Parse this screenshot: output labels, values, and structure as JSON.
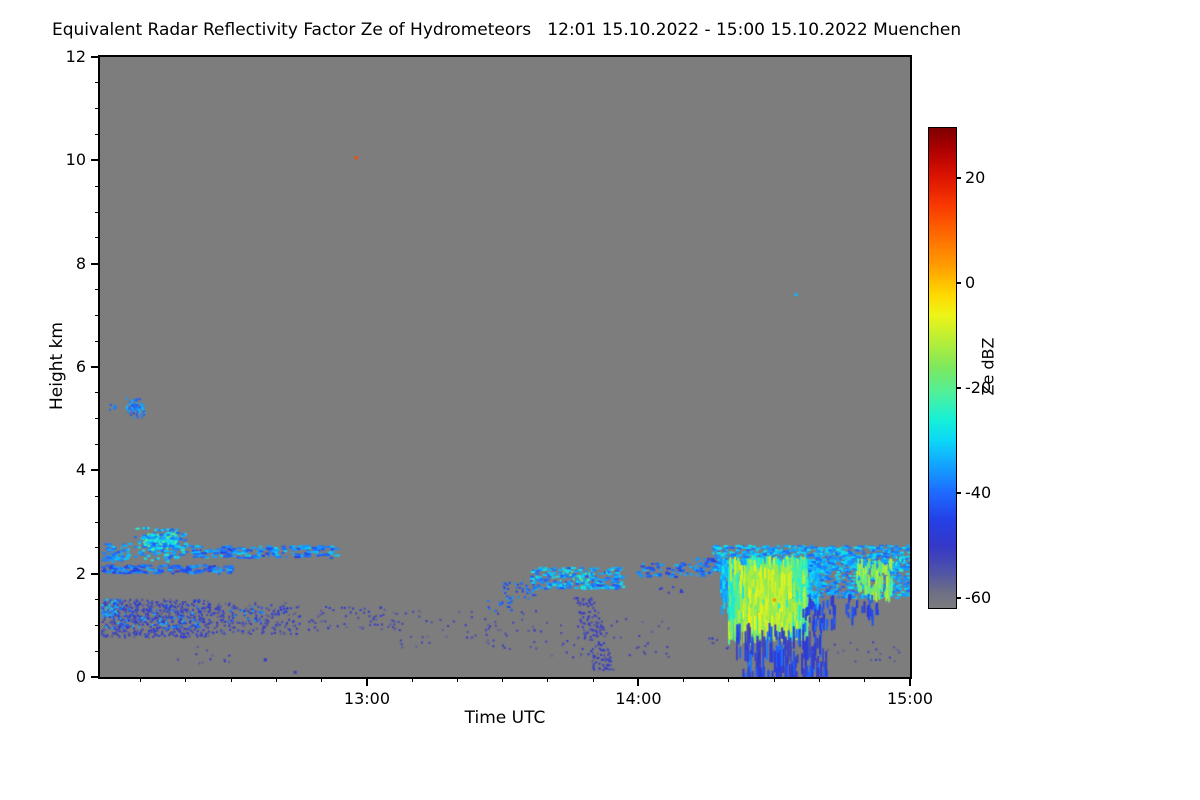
{
  "chart_data": {
    "type": "heatmap",
    "title": "Equivalent Radar Reflectivity Factor Ze of Hydrometeors   12:01 15.10.2022 - 15:00 15.10.2022 Muenchen",
    "xlabel": "Time UTC",
    "ylabel": "Height km",
    "station": "Muenchen",
    "time_range_label": "12:01 15.10.2022 - 15:00 15.10.2022",
    "x_range_hours": [
      12.0167,
      15.0
    ],
    "ylim": [
      0,
      12
    ],
    "plot_background": "#7d7d7d",
    "axes": {
      "x": {
        "majors": [
          {
            "t": 13,
            "label": "13:00"
          },
          {
            "t": 14,
            "label": "14:00"
          },
          {
            "t": 15,
            "label": "15:00"
          }
        ],
        "minor_step_minutes": 10
      },
      "y": {
        "majors": [
          0,
          2,
          4,
          6,
          8,
          10,
          12
        ],
        "minor_step": 0.5
      }
    },
    "colorbar": {
      "label": "Ze dBZ",
      "min": -62,
      "max": 29.5,
      "ticks": [
        20,
        0,
        -20,
        -40,
        -60
      ],
      "stops": [
        [
          -62,
          "#7d7d7d"
        ],
        [
          -59,
          "#6e7086"
        ],
        [
          -55,
          "#5053a8"
        ],
        [
          -50,
          "#3538c8"
        ],
        [
          -45,
          "#2441e8"
        ],
        [
          -40,
          "#1e6aff"
        ],
        [
          -35,
          "#14a0ff"
        ],
        [
          -30,
          "#0cd8f8"
        ],
        [
          -26,
          "#16f0d8"
        ],
        [
          -21,
          "#4ff09c"
        ],
        [
          -16,
          "#7ee85e"
        ],
        [
          -11,
          "#b8ee38"
        ],
        [
          -6,
          "#eef417"
        ],
        [
          -2,
          "#ffd800"
        ],
        [
          3,
          "#ffa000"
        ],
        [
          9,
          "#ff6c00"
        ],
        [
          15,
          "#f83800"
        ],
        [
          21,
          "#d81000"
        ],
        [
          26,
          "#a80000"
        ],
        [
          29.5,
          "#7e0000"
        ]
      ]
    },
    "features": [
      {
        "type": "speckle",
        "t": [
          12.02,
          12.42
        ],
        "h": [
          0.78,
          1.52
        ],
        "dbz": [
          -58,
          -44
        ],
        "density": 0.55
      },
      {
        "type": "speckle",
        "t": [
          12.03,
          12.38
        ],
        "h": [
          0.95,
          1.42
        ],
        "dbz": [
          -44,
          -31
        ],
        "density": 0.14
      },
      {
        "type": "speckle",
        "t": [
          12.02,
          12.09
        ],
        "h": [
          1.18,
          1.52
        ],
        "dbz": [
          -40,
          -30
        ],
        "density": 0.5
      },
      {
        "type": "speckle",
        "t": [
          12.42,
          12.75
        ],
        "h": [
          0.85,
          1.45
        ],
        "dbz": [
          -58,
          -45
        ],
        "density": 0.28
      },
      {
        "type": "speckle",
        "t": [
          12.48,
          12.62
        ],
        "h": [
          1.05,
          1.38
        ],
        "dbz": [
          -44,
          -34
        ],
        "density": 0.12
      },
      {
        "type": "speckle",
        "t": [
          12.75,
          13.12
        ],
        "h": [
          0.92,
          1.38
        ],
        "dbz": [
          -58,
          -48
        ],
        "density": 0.11
      },
      {
        "type": "speckle",
        "t": [
          13.1,
          13.62
        ],
        "h": [
          0.55,
          1.3
        ],
        "dbz": [
          -58,
          -50
        ],
        "density": 0.05
      },
      {
        "type": "speckle",
        "t": [
          13.62,
          14.12
        ],
        "h": [
          0.35,
          1.15
        ],
        "dbz": [
          -58,
          -50
        ],
        "density": 0.035
      },
      {
        "type": "speckle",
        "t": [
          12.3,
          12.5
        ],
        "h": [
          0.25,
          0.6
        ],
        "dbz": [
          -57,
          -50
        ],
        "density": 0.05
      },
      {
        "type": "dot",
        "t": [
          12.62,
          12.63
        ],
        "h": [
          0.32,
          0.36
        ],
        "dbz": [
          -50,
          -50
        ],
        "size": 3
      },
      {
        "type": "dot",
        "t": [
          12.73,
          12.74
        ],
        "h": [
          0.08,
          0.12
        ],
        "dbz": [
          -52,
          -52
        ],
        "size": 3
      },
      {
        "type": "speckle",
        "t": [
          12.02,
          12.5
        ],
        "h": [
          2.02,
          2.18
        ],
        "dbz": [
          -48,
          -33
        ],
        "density": 0.6,
        "stretch": 4
      },
      {
        "type": "speckle",
        "t": [
          12.02,
          12.12
        ],
        "h": [
          2.25,
          2.62
        ],
        "dbz": [
          -42,
          -30
        ],
        "density": 0.45,
        "stretch": 3
      },
      {
        "type": "speckle",
        "t": [
          12.13,
          12.35
        ],
        "h": [
          2.25,
          2.95
        ],
        "dbz": [
          -42,
          -24
        ],
        "density": 0.5,
        "gauss": true,
        "stretch": 3
      },
      {
        "type": "speckle",
        "t": [
          12.17,
          12.3
        ],
        "h": [
          2.45,
          2.8
        ],
        "dbz": [
          -24,
          -16
        ],
        "density": 0.15,
        "gauss": true
      },
      {
        "type": "speckle",
        "t": [
          12.35,
          12.88
        ],
        "h": [
          2.32,
          2.56
        ],
        "dbz": [
          -46,
          -30
        ],
        "density": 0.4,
        "stretch": 5
      },
      {
        "type": "speckle",
        "t": [
          12.105,
          12.185
        ],
        "h": [
          5.0,
          5.46
        ],
        "dbz": [
          -44,
          -32
        ],
        "density": 0.55,
        "gauss": true
      },
      {
        "type": "speckle",
        "t": [
          12.05,
          12.08
        ],
        "h": [
          5.18,
          5.33
        ],
        "dbz": [
          -42,
          -36
        ],
        "density": 0.5
      },
      {
        "type": "dot",
        "t": [
          12.955,
          12.965
        ],
        "h": [
          10.0,
          10.08
        ],
        "dbz": [
          13,
          13
        ],
        "size": 3
      },
      {
        "type": "dot",
        "t": [
          14.575,
          14.585
        ],
        "h": [
          7.36,
          7.43
        ],
        "dbz": [
          -33,
          -33
        ],
        "size": 3
      },
      {
        "type": "speckle",
        "t": [
          13.44,
          13.53
        ],
        "h": [
          1.28,
          1.5
        ],
        "dbz": [
          -47,
          -37
        ],
        "density": 0.25
      },
      {
        "type": "speckle",
        "t": [
          13.5,
          13.62
        ],
        "h": [
          1.52,
          1.85
        ],
        "dbz": [
          -46,
          -35
        ],
        "density": 0.3
      },
      {
        "type": "speckle",
        "t": [
          13.6,
          13.94
        ],
        "h": [
          1.72,
          2.14
        ],
        "dbz": [
          -44,
          -26
        ],
        "density": 0.55,
        "stretch": 3
      },
      {
        "type": "speckle",
        "t": [
          13.7,
          13.88
        ],
        "h": [
          1.8,
          2.06
        ],
        "dbz": [
          -26,
          -18
        ],
        "density": 0.1
      },
      {
        "type": "speckle",
        "t": [
          13.76,
          13.84
        ],
        "h": [
          0.15,
          1.55
        ],
        "dbz": [
          -57,
          -47
        ],
        "density": 0.4,
        "slant": 18
      },
      {
        "type": "speckle",
        "t": [
          13.98,
          14.24
        ],
        "h": [
          1.95,
          2.22
        ],
        "dbz": [
          -46,
          -32
        ],
        "density": 0.3,
        "stretch": 3
      },
      {
        "type": "speckle",
        "t": [
          14.05,
          14.16
        ],
        "h": [
          1.6,
          1.78
        ],
        "dbz": [
          -50,
          -42
        ],
        "density": 0.1
      },
      {
        "type": "speckle",
        "t": [
          14.25,
          14.36
        ],
        "h": [
          0.5,
          0.8
        ],
        "dbz": [
          -56,
          -48
        ],
        "density": 0.08
      },
      {
        "type": "speckle",
        "t": [
          14.2,
          14.33
        ],
        "h": [
          2.0,
          2.32
        ],
        "dbz": [
          -46,
          -33
        ],
        "density": 0.35,
        "stretch": 3
      },
      {
        "type": "speckle",
        "t": [
          14.27,
          15.0
        ],
        "h": [
          2.08,
          2.56
        ],
        "dbz": [
          -42,
          -27
        ],
        "density": 0.65,
        "stretch": 3
      },
      {
        "type": "speckle",
        "t": [
          14.3,
          14.66
        ],
        "h": [
          1.35,
          2.3
        ],
        "dbz": [
          -38,
          -26
        ],
        "density": 0.5,
        "vert": [
          4,
          10
        ]
      },
      {
        "type": "speckle",
        "t": [
          14.33,
          14.62
        ],
        "h": [
          0.95,
          2.35
        ],
        "dbz": [
          -28,
          -8
        ],
        "density": 0.55,
        "vert": [
          8,
          22
        ]
      },
      {
        "type": "speckle",
        "t": [
          14.38,
          14.56
        ],
        "h": [
          1.05,
          2.2
        ],
        "dbz": [
          -16,
          -5
        ],
        "density": 0.35,
        "vert": [
          8,
          20
        ]
      },
      {
        "type": "dot",
        "t": [
          14.495,
          14.505
        ],
        "h": [
          1.45,
          1.52
        ],
        "dbz": [
          6,
          6
        ],
        "size": 3
      },
      {
        "type": "speckle",
        "t": [
          14.35,
          14.68
        ],
        "h": [
          0.08,
          1.05
        ],
        "dbz": [
          -54,
          -38
        ],
        "density": 0.13,
        "vert": [
          8,
          26
        ],
        "slant": 6
      },
      {
        "type": "speckle",
        "t": [
          14.6,
          14.72
        ],
        "h": [
          1.05,
          1.6
        ],
        "dbz": [
          -50,
          -40
        ],
        "density": 0.2,
        "vert": [
          5,
          12
        ]
      },
      {
        "type": "speckle",
        "t": [
          14.62,
          15.0
        ],
        "h": [
          1.55,
          2.3
        ],
        "dbz": [
          -42,
          -28
        ],
        "density": 0.5,
        "stretch": 3
      },
      {
        "type": "speckle",
        "t": [
          14.8,
          14.93
        ],
        "h": [
          1.65,
          2.3
        ],
        "dbz": [
          -22,
          -10
        ],
        "density": 0.3,
        "vert": [
          6,
          14
        ]
      },
      {
        "type": "speckle",
        "t": [
          14.93,
          14.98
        ],
        "h": [
          2.05,
          2.35
        ],
        "dbz": [
          -26,
          -16
        ],
        "density": 0.2
      },
      {
        "type": "speckle",
        "t": [
          14.76,
          14.88
        ],
        "h": [
          1.2,
          1.62
        ],
        "dbz": [
          -50,
          -40
        ],
        "density": 0.15,
        "vert": [
          5,
          12
        ]
      },
      {
        "type": "speckle",
        "t": [
          14.68,
          14.96
        ],
        "h": [
          0.3,
          0.7
        ],
        "dbz": [
          -57,
          -50
        ],
        "density": 0.05
      }
    ]
  }
}
